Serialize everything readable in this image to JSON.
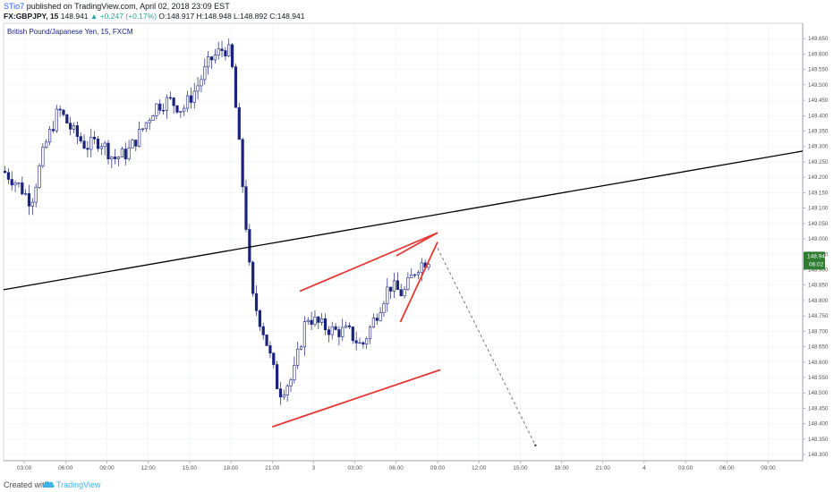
{
  "header": {
    "author": "STio7",
    "published": "published on TradingView.com, April 02, 2018 23:09 EST",
    "symbol": "FX:GBPJPY, 15",
    "last": "148.941",
    "change": "+0.247 (+0.17%)",
    "ohlc": "O:148.917 H:148.948 L:148.892 C:148.941"
  },
  "footer": {
    "created": "Created with",
    "brand": "TradingView"
  },
  "colors": {
    "up": "#26a69a",
    "candle": "#1a237e",
    "pattern": "#e53935",
    "trendline": "#000000",
    "price_tag": "#2e7d32"
  },
  "chart_data": {
    "type": "candlestick",
    "title": "British Pound/Japanese Yen, 15, FXCM",
    "ylim": [
      148.28,
      149.7
    ],
    "y_ticks": [
      "149.650",
      "149.600",
      "149.550",
      "149.500",
      "149.450",
      "149.400",
      "149.350",
      "149.300",
      "149.250",
      "149.200",
      "149.150",
      "149.100",
      "149.050",
      "149.000",
      "148.950",
      "148.900",
      "148.850",
      "148.800",
      "148.750",
      "148.700",
      "148.650",
      "148.600",
      "148.550",
      "148.500",
      "148.450",
      "148.400",
      "148.350",
      "148.300"
    ],
    "x_ticks": [
      "03:00",
      "06:00",
      "09:00",
      "12:00",
      "15:00",
      "18:00",
      "21:00",
      "3",
      "03:00",
      "06:00",
      "09:00",
      "12:00",
      "15:00",
      "18:00",
      "21:00",
      "4",
      "03:00",
      "06:00",
      "09:00"
    ],
    "x_range_hours": [
      0,
      58
    ],
    "last_price": "148.941",
    "countdown": "06:02",
    "price_path": [
      [
        0,
        149.22
      ],
      [
        1,
        149.18
      ],
      [
        2,
        149.12
      ],
      [
        3,
        149.3
      ],
      [
        4,
        149.42
      ],
      [
        5,
        149.35
      ],
      [
        6,
        149.3
      ],
      [
        7,
        149.32
      ],
      [
        8,
        149.26
      ],
      [
        9,
        149.28
      ],
      [
        10,
        149.35
      ],
      [
        11,
        149.43
      ],
      [
        12,
        149.45
      ],
      [
        13,
        149.42
      ],
      [
        14,
        149.49
      ],
      [
        15,
        149.58
      ],
      [
        16,
        149.62
      ],
      [
        16.5,
        149.6
      ],
      [
        17,
        149.35
      ],
      [
        17.5,
        149.1
      ],
      [
        18,
        148.82
      ],
      [
        19,
        148.68
      ],
      [
        20,
        148.5
      ],
      [
        21,
        148.55
      ],
      [
        22,
        148.75
      ],
      [
        23,
        148.72
      ],
      [
        24,
        148.7
      ],
      [
        25,
        148.7
      ],
      [
        26,
        148.65
      ],
      [
        27,
        148.75
      ],
      [
        28,
        148.85
      ],
      [
        29,
        148.82
      ],
      [
        30,
        148.91
      ],
      [
        31,
        148.94
      ]
    ],
    "annotations": [
      {
        "type": "trendline",
        "points": [
          [
            0,
            148.835
          ],
          [
            58,
            149.285
          ]
        ]
      },
      {
        "type": "channel_upper",
        "points": [
          [
            21.5,
            148.83
          ],
          [
            31.5,
            149.02
          ]
        ]
      },
      {
        "type": "channel_lower",
        "points": [
          [
            19.5,
            148.39
          ],
          [
            31.7,
            148.575
          ]
        ]
      },
      {
        "type": "wedge_upper",
        "points": [
          [
            28.5,
            148.945
          ],
          [
            31.5,
            149.02
          ]
        ]
      },
      {
        "type": "wedge_lower",
        "points": [
          [
            28.8,
            148.73
          ],
          [
            31.5,
            148.99
          ]
        ]
      },
      {
        "type": "projection_dashed",
        "points": [
          [
            31.5,
            148.97
          ],
          [
            38.6,
            148.33
          ]
        ]
      }
    ]
  }
}
